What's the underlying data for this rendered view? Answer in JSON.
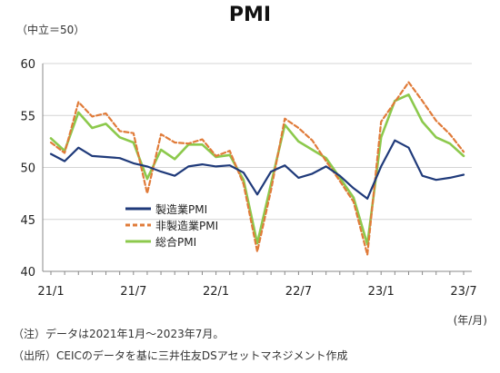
{
  "header": {
    "title": "PMI",
    "unit": "（中立＝50）"
  },
  "footer": {
    "period": "(年/月)",
    "note": "（注）データは2021年1月～2023年7月。",
    "source": "（出所）CEICのデータを基に三井住友DSアセットマネジメント作成"
  },
  "colors": {
    "manufacturing": "#1f3a7a",
    "services": "#e07b39",
    "composite": "#8cc94c"
  },
  "chart_data": {
    "type": "line",
    "title": "PMI",
    "ylabel": "（中立＝50）",
    "xlabel": "(年/月)",
    "ylim": [
      40,
      60
    ],
    "yticks": [
      40,
      45,
      50,
      55,
      60
    ],
    "xticks": [
      {
        "label": "21/1",
        "index": 0
      },
      {
        "label": "21/7",
        "index": 6
      },
      {
        "label": "22/1",
        "index": 12
      },
      {
        "label": "22/7",
        "index": 18
      },
      {
        "label": "23/1",
        "index": 24
      },
      {
        "label": "23/7",
        "index": 30
      }
    ],
    "x": [
      "21/1",
      "21/2",
      "21/3",
      "21/4",
      "21/5",
      "21/6",
      "21/7",
      "21/8",
      "21/9",
      "21/10",
      "21/11",
      "21/12",
      "22/1",
      "22/2",
      "22/3",
      "22/4",
      "22/5",
      "22/6",
      "22/7",
      "22/8",
      "22/9",
      "22/10",
      "22/11",
      "22/12",
      "23/1",
      "23/2",
      "23/3",
      "23/4",
      "23/5",
      "23/6",
      "23/7"
    ],
    "grid": "horizontal",
    "legend_position": "bottom-left",
    "series": [
      {
        "name": "製造業PMI",
        "key": "manufacturing",
        "style": "solid",
        "values": [
          51.3,
          50.6,
          51.9,
          51.1,
          51.0,
          50.9,
          50.4,
          50.1,
          49.6,
          49.2,
          50.1,
          50.3,
          50.1,
          50.2,
          49.5,
          47.4,
          49.6,
          50.2,
          49.0,
          49.4,
          50.1,
          49.2,
          48.0,
          47.0,
          50.1,
          52.6,
          51.9,
          49.2,
          48.8,
          49.0,
          49.3
        ]
      },
      {
        "name": "非製造業PMI",
        "key": "services",
        "style": "dashed",
        "values": [
          52.4,
          51.4,
          56.3,
          54.9,
          55.2,
          53.5,
          53.3,
          47.5,
          53.2,
          52.4,
          52.3,
          52.7,
          51.1,
          51.6,
          48.4,
          41.9,
          47.8,
          54.7,
          53.8,
          52.6,
          50.6,
          48.7,
          46.7,
          41.6,
          54.4,
          56.3,
          58.2,
          56.4,
          54.5,
          53.2,
          51.5
        ]
      },
      {
        "name": "総合PMI",
        "key": "composite",
        "style": "solid",
        "values": [
          52.8,
          51.6,
          55.3,
          53.8,
          54.2,
          52.9,
          52.4,
          48.9,
          51.7,
          50.8,
          52.2,
          52.2,
          51.0,
          51.2,
          48.8,
          42.7,
          48.4,
          54.1,
          52.5,
          51.7,
          50.9,
          49.0,
          47.1,
          42.6,
          52.9,
          56.4,
          57.0,
          54.4,
          52.9,
          52.3,
          51.1
        ]
      }
    ]
  }
}
